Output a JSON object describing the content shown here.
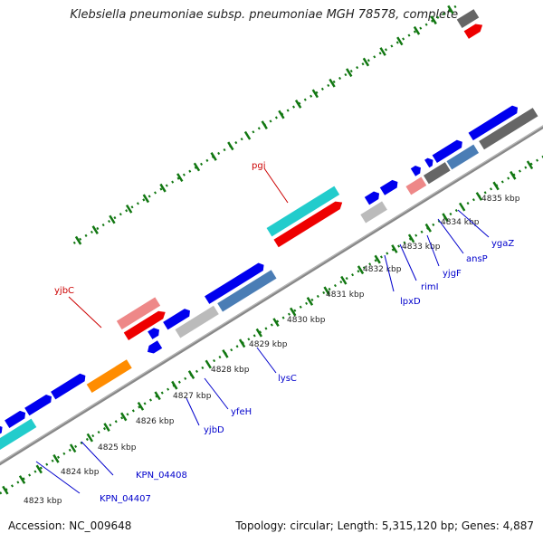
{
  "title": "Klebsiella pneumoniae subsp. pneumoniae MGH 78578, complete ...",
  "footer": {
    "accession": "Accession: NC_009648",
    "summary": "Topology: circular; Length: 5,315,120 bp; Genes: 4,887"
  },
  "ticks": [
    {
      "label": "4823 kbp"
    },
    {
      "label": "4824 kbp"
    },
    {
      "label": "4825 kbp"
    },
    {
      "label": "4826 kbp"
    },
    {
      "label": "4827 kbp"
    },
    {
      "label": "4828 kbp"
    },
    {
      "label": "4829 kbp"
    },
    {
      "label": "4830 kbp"
    },
    {
      "label": "4831 kbp"
    },
    {
      "label": "4832 kbp"
    },
    {
      "label": "4833 kbp"
    },
    {
      "label": "4834 kbp"
    },
    {
      "label": "4835 kbp"
    }
  ],
  "gene_labels_blue": [
    {
      "name": "KPN_04407"
    },
    {
      "name": "KPN_04408"
    },
    {
      "name": "yjbD"
    },
    {
      "name": "yfeH"
    },
    {
      "name": "lysC"
    },
    {
      "name": "lpxD"
    },
    {
      "name": "rimI"
    },
    {
      "name": "yjgF"
    },
    {
      "name": "ansP"
    },
    {
      "name": "ygaZ"
    }
  ],
  "gene_labels_red": [
    {
      "name": "yjbC"
    },
    {
      "name": "pgi"
    }
  ],
  "colors": {
    "blue": "#0000ee",
    "cyan": "#22cccc",
    "red": "#ee0000",
    "pink": "#ee8888",
    "gray": "#bbbbbb",
    "darkgray": "#666666",
    "steelblue": "#4a7db5",
    "orange": "#ff8c00",
    "tick_green": "#117711"
  }
}
